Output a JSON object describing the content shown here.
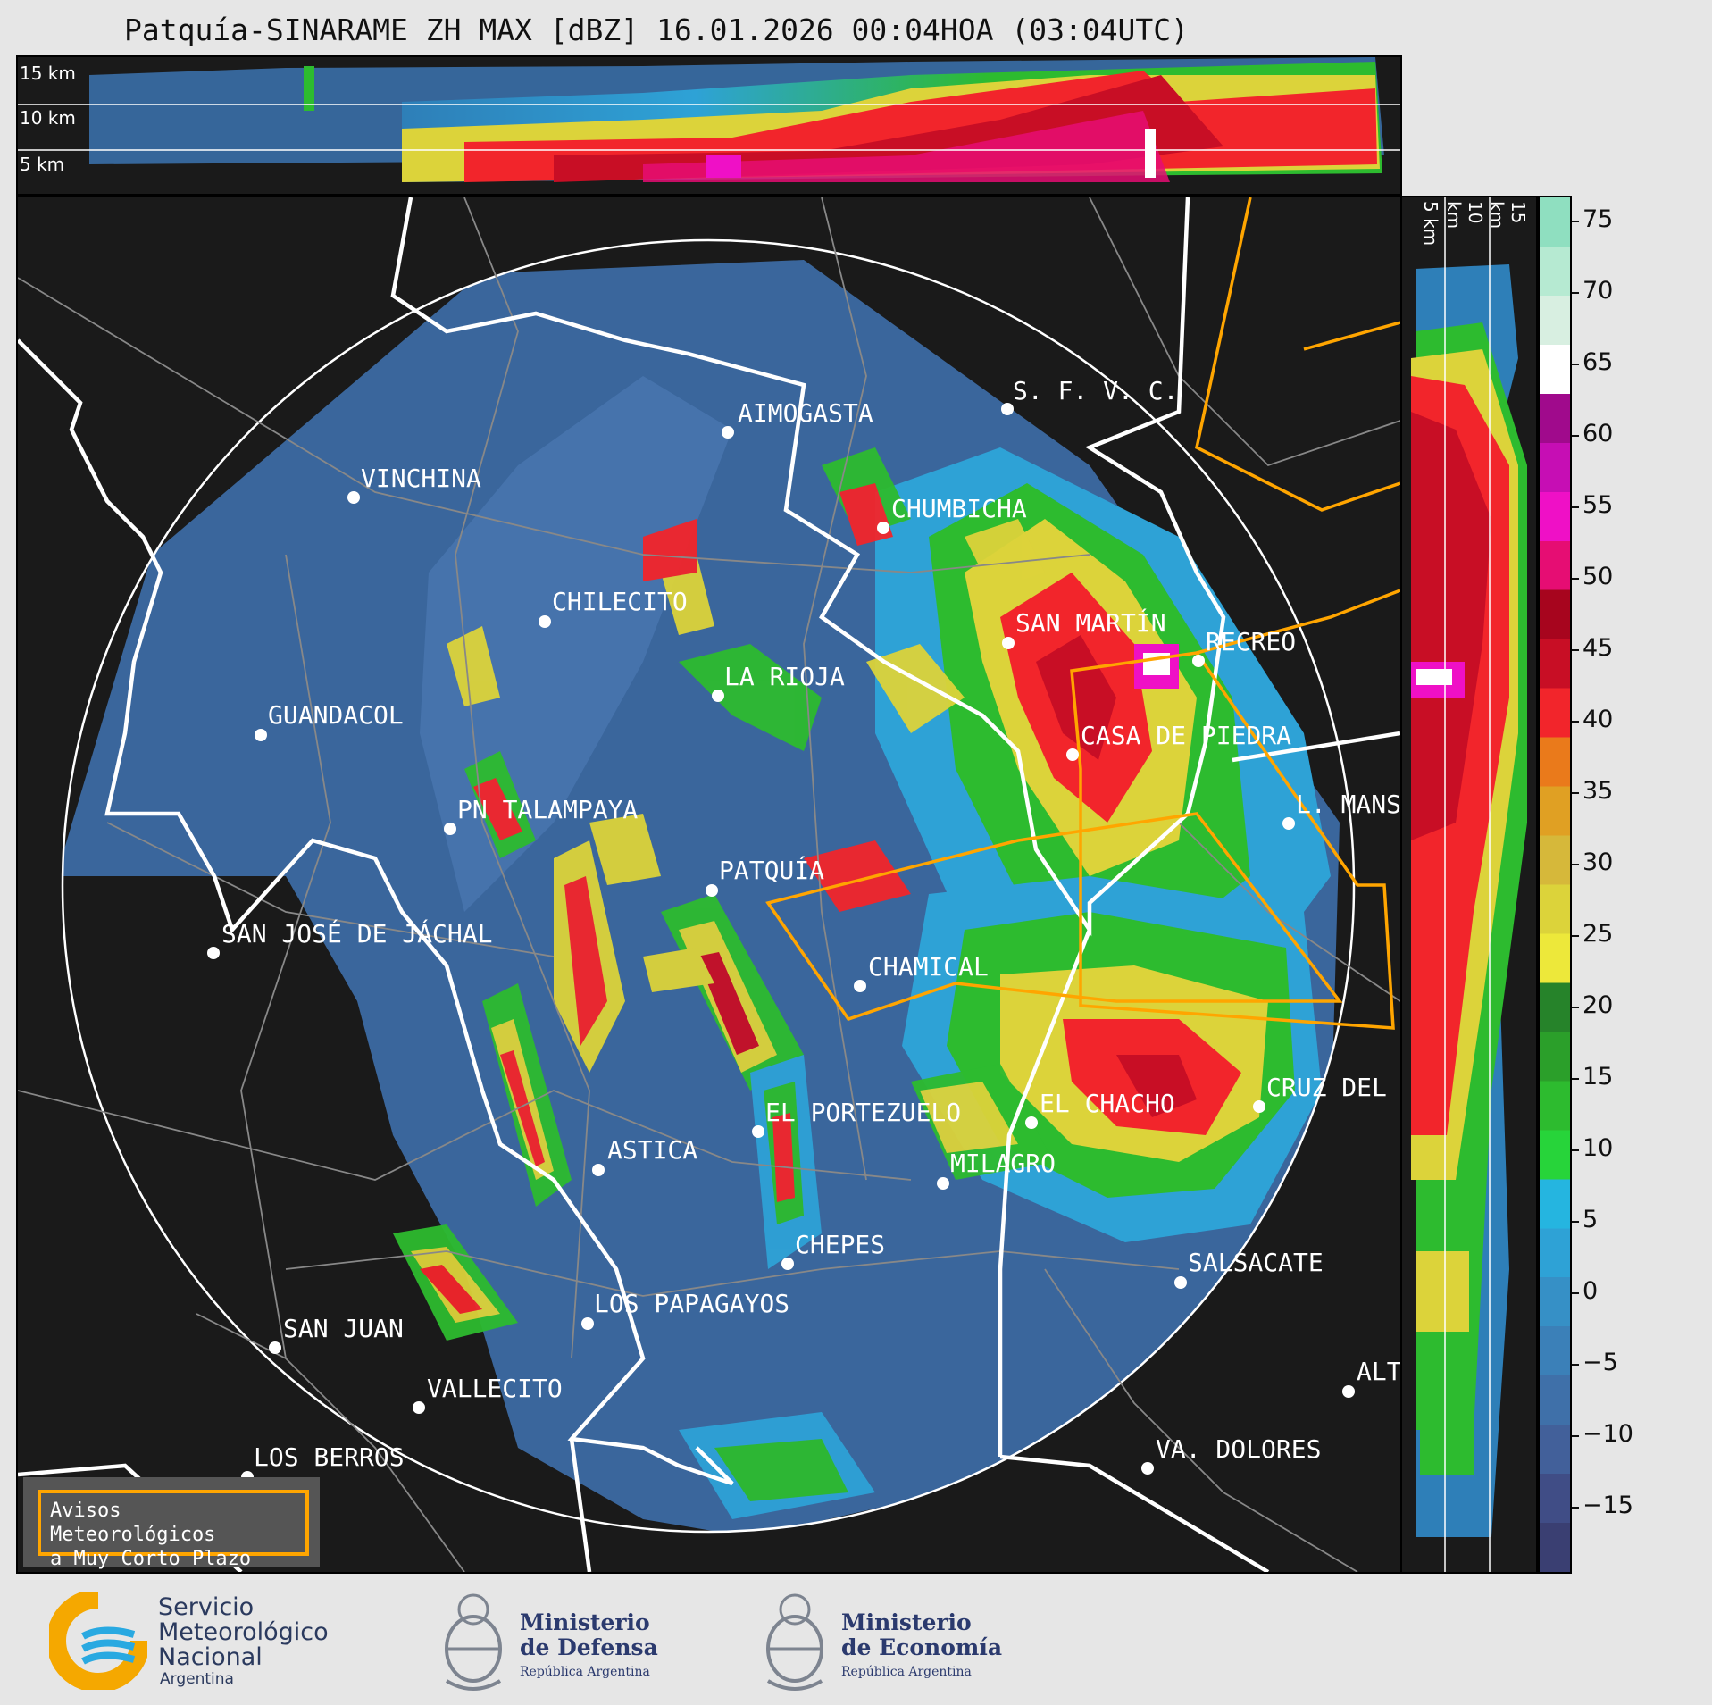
{
  "title": "Patquía-SINARAME ZH MAX [dBZ] 16.01.2026 00:04HOA (03:04UTC)",
  "top_profile": {
    "labels": [
      "15 km",
      "10 km",
      "5 km"
    ]
  },
  "side_profile": {
    "labels": [
      "5 km",
      "10 km",
      "15 km"
    ]
  },
  "colorbar": {
    "ticks": [
      "75",
      "70",
      "65",
      "60",
      "55",
      "50",
      "45",
      "40",
      "35",
      "30",
      "25",
      "20",
      "15",
      "10",
      "5",
      "0",
      "−5",
      "−10",
      "−15"
    ],
    "colors": [
      "#3a3f72",
      "#404d86",
      "#42609a",
      "#3f70a9",
      "#3b80b8",
      "#3690c6",
      "#2ea2d6",
      "#25b5e0",
      "#27d43a",
      "#2dbb2f",
      "#2b9f2a",
      "#26832a",
      "#ede83a",
      "#dcd33a",
      "#d6b83a",
      "#e0a023",
      "#ea7a1b",
      "#f2252b",
      "#c80e25",
      "#a7051e",
      "#e60d73",
      "#ef10c6",
      "#c60eb4",
      "#a00a8c",
      "#ffffff",
      "#d8efe1",
      "#b6ead2",
      "#8fdfc0"
    ]
  },
  "cities": [
    {
      "name": "AIMOGASTA"
    },
    {
      "name": "S. F. V. C."
    },
    {
      "name": "VINCHINA"
    },
    {
      "name": "CHUMBICHA"
    },
    {
      "name": "CHILECITO"
    },
    {
      "name": "SAN MARTÍN"
    },
    {
      "name": "RECREO"
    },
    {
      "name": "LA RIOJA"
    },
    {
      "name": "GUANDACOL"
    },
    {
      "name": "CASA DE PIEDRA"
    },
    {
      "name": "PN TALAMPAYA"
    },
    {
      "name": "L. MANS"
    },
    {
      "name": "PATQUÍA"
    },
    {
      "name": "SAN JOSÉ DE JÁCHAL"
    },
    {
      "name": "CHAMICAL"
    },
    {
      "name": "CRUZ DEL"
    },
    {
      "name": "EL PORTEZUELO"
    },
    {
      "name": "EL CHACHO"
    },
    {
      "name": "ASTICA"
    },
    {
      "name": "MILAGRO"
    },
    {
      "name": "CHEPES"
    },
    {
      "name": "SALSACATE"
    },
    {
      "name": "LOS PAPAGAYOS"
    },
    {
      "name": "SAN JUAN"
    },
    {
      "name": "ALT"
    },
    {
      "name": "VALLECITO"
    },
    {
      "name": "VA. DOLORES"
    },
    {
      "name": "LOS BERROS"
    }
  ],
  "warning_box": {
    "line1": "Avisos Meteorológicos",
    "line2": "a Muy Corto Plazo"
  },
  "logos": {
    "smn": {
      "line1": "Servicio",
      "line2": "Meteorológico",
      "line3": "Nacional",
      "line4": "Argentina"
    },
    "defensa": {
      "line1": "Ministerio",
      "line2": "de Defensa",
      "line3": "República Argentina"
    },
    "economia": {
      "line1": "Ministerio",
      "line2": "de Economía",
      "line3": "República Argentina"
    }
  }
}
